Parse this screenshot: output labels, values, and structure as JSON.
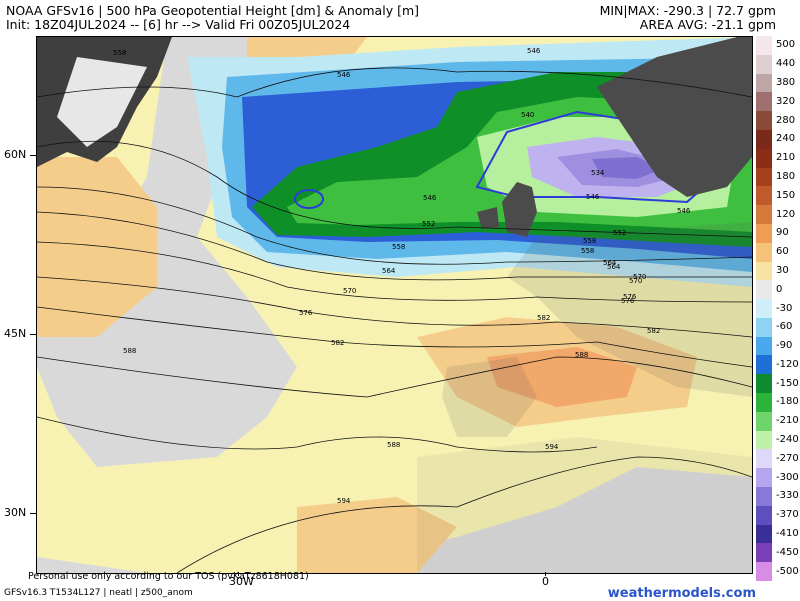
{
  "header": {
    "title": "NOAA GFSv16 | 500 hPa Geopotential Height [dm] & Anomaly [m]",
    "init": "Init: 18Z04JUL2024 -- [6] hr --> Valid Fri 00Z05JUL2024",
    "minmax": "MIN|MAX: -290.3 | 72.7 gpm",
    "area_avg": "AREA AVG: -21.1 gpm"
  },
  "map": {
    "lat_labels": [
      "60N",
      "45N",
      "30N"
    ],
    "lon_labels": [
      "30W",
      "0"
    ],
    "contour_labels": [
      "546",
      "546",
      "546",
      "558",
      "558",
      "564",
      "570",
      "576",
      "582",
      "582",
      "588",
      "588",
      "594",
      "594",
      "540",
      "534",
      "546",
      "552",
      "558",
      "564",
      "570",
      "576",
      "582",
      "588",
      "546",
      "552",
      "558",
      "564",
      "570",
      "576"
    ],
    "colors": {
      "land": "#3f3f3f",
      "ocean_neutral": "#d9d9d9",
      "warm_light": "#f7f2b2",
      "warm_mid": "#f5cd8a",
      "warm_strong": "#f2a76b",
      "cool_light": "#bfe8f5",
      "cool_mid": "#5fb8ea",
      "cool_blue": "#2c5fd6",
      "green_dark": "#0e8f28",
      "green_mid": "#3fbf3f",
      "green_light": "#b6ef9e",
      "purple": "#9f8fe0"
    }
  },
  "colorbar": {
    "labels": [
      "500",
      "440",
      "380",
      "320",
      "280",
      "240",
      "210",
      "180",
      "150",
      "120",
      "90",
      "60",
      "30",
      "0",
      "-30",
      "-60",
      "-90",
      "-120",
      "-150",
      "-180",
      "-210",
      "-240",
      "-270",
      "-300",
      "-330",
      "-370",
      "-410",
      "-450",
      "-500"
    ],
    "colors": [
      "#f3e7ea",
      "#e0cfd1",
      "#bfa6a6",
      "#a07070",
      "#8a4a3a",
      "#7a2a1a",
      "#8b2c14",
      "#a5401e",
      "#bf5a2a",
      "#d67a3c",
      "#ef9d55",
      "#f6c17a",
      "#f8e3a6",
      "#e9e9e9",
      "#cfeef8",
      "#8fd3f4",
      "#4aa8ee",
      "#1f6fd8",
      "#0f8a2e",
      "#2db33a",
      "#6fd46a",
      "#bff0a8",
      "#e0d8f8",
      "#b6a6ef",
      "#8a78d8",
      "#5e4fbf",
      "#3a2e97",
      "#7a3fb6",
      "#d98ce6"
    ]
  },
  "footer": {
    "personal": "Personal use only according to our TOS (pvKaTz8618H081)",
    "model": "GFSv16.3 T1534L127 | neatl | z500_anom",
    "brand": "weathermodels.com"
  }
}
